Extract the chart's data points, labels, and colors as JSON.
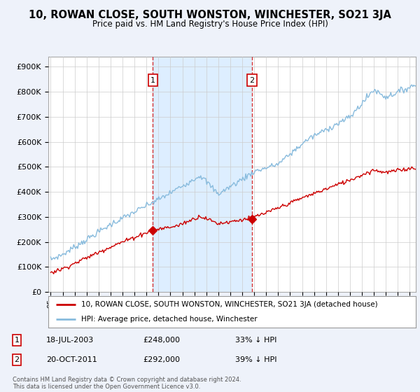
{
  "title": "10, ROWAN CLOSE, SOUTH WONSTON, WINCHESTER, SO21 3JA",
  "subtitle": "Price paid vs. HM Land Registry's House Price Index (HPI)",
  "ylabel_ticks": [
    "£0",
    "£100K",
    "£200K",
    "£300K",
    "£400K",
    "£500K",
    "£600K",
    "£700K",
    "£800K",
    "£900K"
  ],
  "ytick_values": [
    0,
    100000,
    200000,
    300000,
    400000,
    500000,
    600000,
    700000,
    800000,
    900000
  ],
  "ylim": [
    0,
    940000
  ],
  "xlim_start": 1994.8,
  "xlim_end": 2025.5,
  "hpi_color": "#88bbdd",
  "price_color": "#cc0000",
  "shade_color": "#ddeeff",
  "marker1_date": 2003.54,
  "marker1_price": 248000,
  "marker2_date": 2011.8,
  "marker2_price": 292000,
  "legend_line1": "10, ROWAN CLOSE, SOUTH WONSTON, WINCHESTER, SO21 3JA (detached house)",
  "legend_line2": "HPI: Average price, detached house, Winchester",
  "footnote": "Contains HM Land Registry data © Crown copyright and database right 2024.\nThis data is licensed under the Open Government Licence v3.0.",
  "background_color": "#eef2fa",
  "plot_bg_color": "#ffffff",
  "grid_color": "#cccccc"
}
